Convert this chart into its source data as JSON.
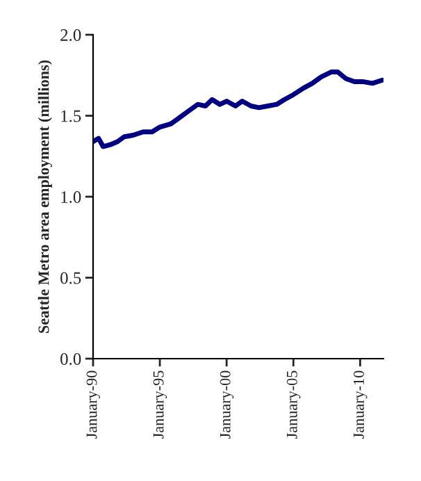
{
  "chart_data": {
    "type": "line",
    "ylabel": "Seattle Metro area employment (millions)",
    "x": [
      "1990-01",
      "1990-06",
      "1990-10",
      "1991-04",
      "1991-11",
      "1992-05",
      "1993-01",
      "1993-10",
      "1994-06",
      "1995-01",
      "1995-11",
      "1996-07",
      "1997-03",
      "1997-11",
      "1998-06",
      "1998-12",
      "1999-07",
      "2000-01",
      "2000-09",
      "2001-03",
      "2001-11",
      "2002-06",
      "2003-02",
      "2003-10",
      "2004-05",
      "2005-01",
      "2005-10",
      "2006-06",
      "2007-02",
      "2007-11",
      "2008-05",
      "2008-12",
      "2009-08",
      "2010-04",
      "2010-12",
      "2011-09"
    ],
    "series": [
      {
        "color": "#000080",
        "values": [
          1.34,
          1.36,
          1.31,
          1.32,
          1.34,
          1.37,
          1.38,
          1.4,
          1.4,
          1.43,
          1.45,
          1.49,
          1.53,
          1.57,
          1.56,
          1.6,
          1.57,
          1.59,
          1.56,
          1.59,
          1.56,
          1.55,
          1.56,
          1.57,
          1.6,
          1.63,
          1.67,
          1.7,
          1.74,
          1.77,
          1.77,
          1.73,
          1.71,
          1.71,
          1.7,
          1.72
        ]
      }
    ],
    "xlim": [
      "1990-01",
      "2011-10"
    ],
    "xticks": [
      {
        "value": "1990-01",
        "label": "January-90"
      },
      {
        "value": "1995-01",
        "label": "January-95"
      },
      {
        "value": "2000-01",
        "label": "January-00"
      },
      {
        "value": "2005-01",
        "label": "January-05"
      },
      {
        "value": "2010-01",
        "label": "January-10"
      }
    ],
    "ylim": [
      0,
      2
    ],
    "yticks": [
      {
        "value": 0,
        "label": "0.0"
      },
      {
        "value": 0.5,
        "label": "0.5"
      },
      {
        "value": 1,
        "label": "1.0"
      },
      {
        "value": 1.5,
        "label": "1.5"
      },
      {
        "value": 2,
        "label": "2.0"
      }
    ],
    "grid": false,
    "legend": false,
    "line_style": "solid",
    "marker": "none"
  }
}
